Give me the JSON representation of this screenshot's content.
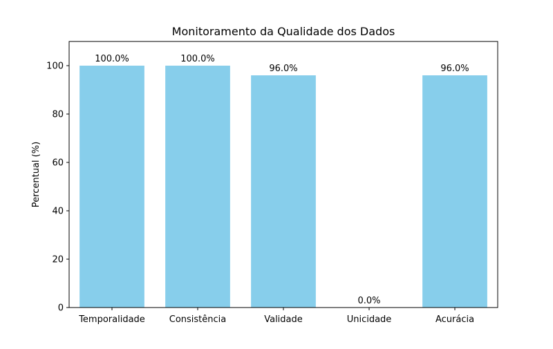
{
  "chart_data": {
    "type": "bar",
    "title": "Monitoramento da Qualidade dos Dados",
    "xlabel": "",
    "ylabel": "Percentual (%)",
    "categories": [
      "Temporalidade",
      "Consistência",
      "Validade",
      "Unicidade",
      "Acurácia"
    ],
    "values": [
      100.0,
      100.0,
      96.0,
      0.0,
      96.0
    ],
    "data_labels": [
      "100.0%",
      "100.0%",
      "96.0%",
      "0.0%",
      "96.0%"
    ],
    "ylim": [
      0,
      110
    ],
    "yticks": [
      0,
      20,
      40,
      60,
      80,
      100
    ],
    "grid": false,
    "legend": "none",
    "bar_color": "#87ceeb"
  }
}
